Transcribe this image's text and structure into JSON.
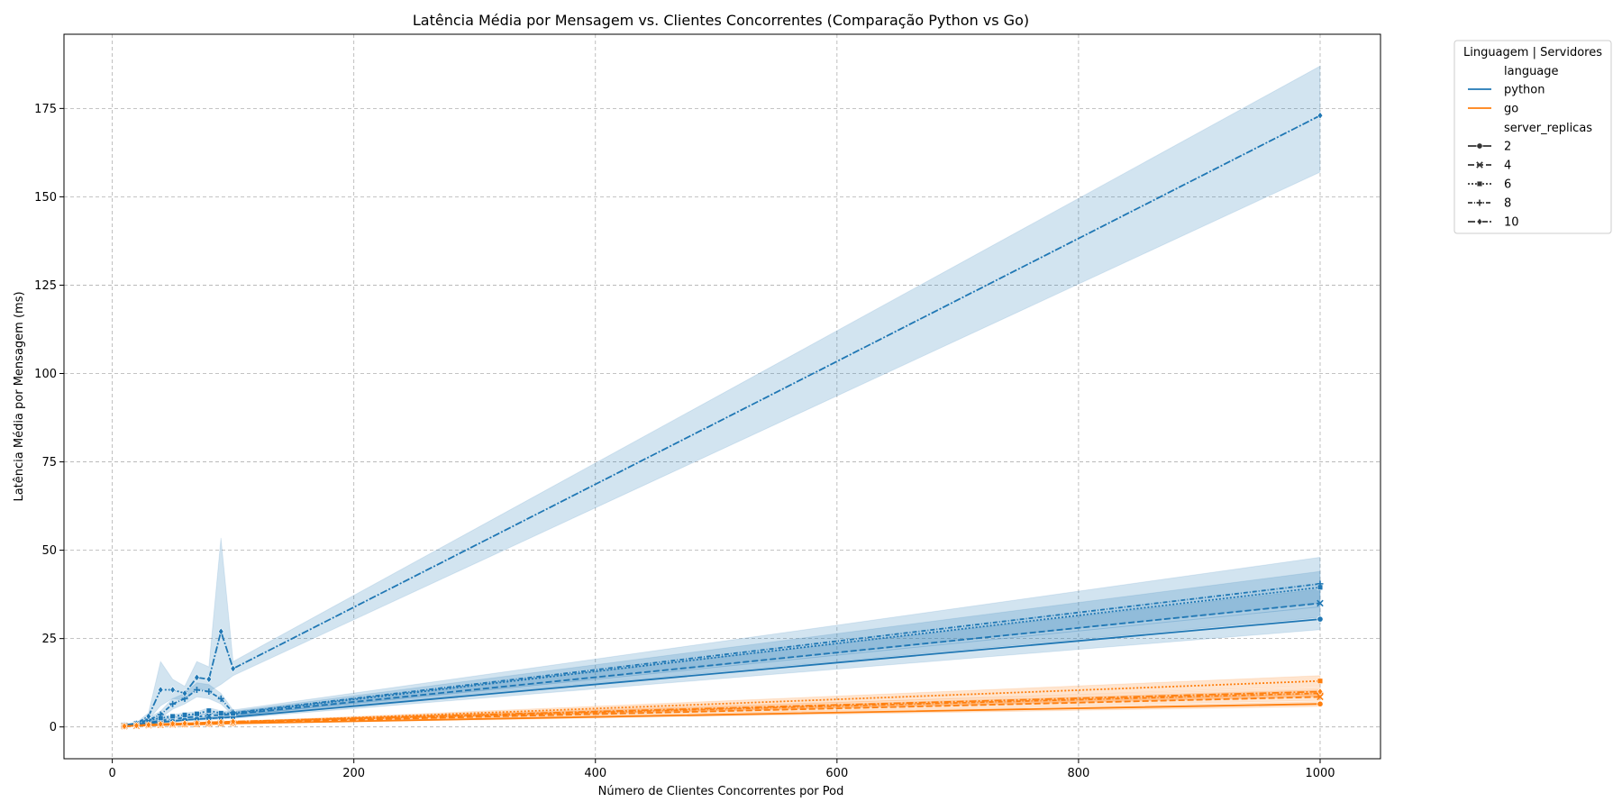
{
  "chart_data": {
    "type": "line",
    "title": "Latência Média por Mensagem vs. Clientes Concorrentes (Comparação Python vs Go)",
    "xlabel": "Número de Clientes Concorrentes por Pod",
    "ylabel": "Latência Média por Mensagem (ms)",
    "xlim": [
      -40,
      1050
    ],
    "ylim": [
      -9,
      196
    ],
    "xticks": [
      0,
      200,
      400,
      600,
      800,
      1000
    ],
    "yticks": [
      0,
      25,
      50,
      75,
      100,
      125,
      150,
      175
    ],
    "grid": true,
    "legend": {
      "placement": "outside-right",
      "title": "Linguagem | Servidores",
      "hue_title": "language",
      "hue_entries": [
        "python",
        "go"
      ],
      "style_title": "server_replicas",
      "style_entries": [
        "2",
        "4",
        "6",
        "8",
        "10"
      ]
    },
    "colors": {
      "python": "#1f77b4",
      "go": "#ff7f0e",
      "grid": "#b0b0b0"
    },
    "series": [
      {
        "language": "python",
        "replicas": "2",
        "x": [
          10,
          20,
          30,
          40,
          50,
          60,
          70,
          80,
          90,
          100,
          1000
        ],
        "y": [
          0.4,
          0.7,
          1.0,
          1.4,
          1.6,
          2.0,
          2.2,
          2.4,
          2.6,
          2.8,
          30.5
        ],
        "lo": [
          0.3,
          0.5,
          0.8,
          1.1,
          1.3,
          1.6,
          1.8,
          2.0,
          2.2,
          2.4,
          27.5
        ],
        "hi": [
          0.5,
          0.9,
          1.3,
          1.7,
          2.0,
          2.4,
          2.7,
          2.9,
          3.1,
          3.3,
          34.0
        ]
      },
      {
        "language": "python",
        "replicas": "4",
        "x": [
          10,
          20,
          30,
          40,
          50,
          60,
          70,
          80,
          90,
          100,
          1000
        ],
        "y": [
          0.4,
          0.8,
          1.2,
          1.8,
          2.2,
          2.6,
          2.9,
          3.2,
          3.4,
          3.6,
          35.0
        ],
        "lo": [
          0.3,
          0.6,
          0.9,
          1.4,
          1.8,
          2.1,
          2.4,
          2.7,
          2.9,
          3.1,
          31.0
        ],
        "hi": [
          0.5,
          1.0,
          1.5,
          2.2,
          2.7,
          3.1,
          3.5,
          3.8,
          4.0,
          4.2,
          39.0
        ]
      },
      {
        "language": "python",
        "replicas": "6",
        "x": [
          10,
          20,
          30,
          40,
          50,
          60,
          70,
          80,
          90,
          100,
          1000
        ],
        "y": [
          0.5,
          1.0,
          1.8,
          2.5,
          3.0,
          3.4,
          3.7,
          4.6,
          3.9,
          3.8,
          39.5
        ],
        "lo": [
          0.4,
          0.8,
          1.4,
          2.0,
          2.5,
          2.9,
          3.1,
          3.8,
          3.2,
          3.2,
          35.0
        ],
        "hi": [
          0.6,
          1.2,
          2.2,
          3.0,
          3.5,
          4.0,
          4.3,
          5.4,
          4.6,
          4.4,
          44.0
        ]
      },
      {
        "language": "python",
        "replicas": "8",
        "x": [
          10,
          20,
          30,
          40,
          50,
          60,
          70,
          80,
          90,
          100,
          1000
        ],
        "y": [
          0.5,
          1.0,
          2.0,
          3.5,
          6.5,
          8.0,
          10.5,
          10.0,
          8.0,
          4.0,
          40.5
        ],
        "lo": [
          0.4,
          0.8,
          1.5,
          2.5,
          5.0,
          6.5,
          8.5,
          8.0,
          6.5,
          3.2,
          34.0
        ],
        "hi": [
          0.6,
          1.2,
          2.5,
          4.5,
          8.0,
          9.5,
          12.5,
          12.0,
          9.5,
          4.8,
          48.0
        ]
      },
      {
        "language": "python",
        "replicas": "10",
        "x": [
          10,
          20,
          30,
          40,
          50,
          60,
          70,
          80,
          90,
          100,
          1000
        ],
        "y": [
          0.5,
          1.0,
          3.0,
          10.5,
          10.5,
          9.5,
          14.0,
          13.5,
          27.0,
          16.5,
          173.0
        ],
        "lo": [
          0.4,
          0.8,
          2.0,
          6.0,
          8.0,
          7.5,
          11.0,
          10.0,
          12.0,
          14.5,
          157.0
        ],
        "hi": [
          0.6,
          1.2,
          4.0,
          18.5,
          13.5,
          11.5,
          18.5,
          17.0,
          53.5,
          18.5,
          187.0
        ]
      },
      {
        "language": "go",
        "replicas": "2",
        "x": [
          10,
          20,
          30,
          40,
          50,
          60,
          70,
          80,
          90,
          100,
          1000
        ],
        "y": [
          0.2,
          0.3,
          0.4,
          0.5,
          0.6,
          0.6,
          0.7,
          0.8,
          0.9,
          1.0,
          6.5
        ],
        "lo": [
          0.1,
          0.2,
          0.3,
          0.4,
          0.5,
          0.5,
          0.6,
          0.7,
          0.8,
          0.9,
          5.8
        ],
        "hi": [
          0.3,
          0.4,
          0.5,
          0.6,
          0.7,
          0.7,
          0.8,
          0.9,
          1.0,
          1.1,
          7.2
        ]
      },
      {
        "language": "go",
        "replicas": "4",
        "x": [
          10,
          20,
          30,
          40,
          50,
          60,
          70,
          80,
          90,
          100,
          1000
        ],
        "y": [
          0.2,
          0.3,
          0.5,
          0.6,
          0.7,
          0.8,
          0.9,
          1.0,
          1.1,
          1.2,
          8.5
        ],
        "lo": [
          0.1,
          0.2,
          0.4,
          0.5,
          0.6,
          0.7,
          0.8,
          0.9,
          1.0,
          1.0,
          7.5
        ],
        "hi": [
          0.3,
          0.4,
          0.6,
          0.7,
          0.8,
          0.9,
          1.0,
          1.1,
          1.2,
          1.4,
          9.5
        ]
      },
      {
        "language": "go",
        "replicas": "6",
        "x": [
          10,
          20,
          30,
          40,
          50,
          60,
          70,
          80,
          90,
          100,
          1000
        ],
        "y": [
          0.2,
          0.4,
          0.5,
          0.7,
          0.8,
          0.9,
          1.0,
          1.1,
          1.2,
          1.3,
          13.0
        ],
        "lo": [
          0.1,
          0.3,
          0.4,
          0.6,
          0.7,
          0.8,
          0.9,
          1.0,
          1.0,
          1.1,
          11.5
        ],
        "hi": [
          0.3,
          0.5,
          0.6,
          0.8,
          0.9,
          1.0,
          1.1,
          1.2,
          1.4,
          1.5,
          14.5
        ]
      },
      {
        "language": "go",
        "replicas": "8",
        "x": [
          10,
          20,
          30,
          40,
          50,
          60,
          70,
          80,
          90,
          100,
          1000
        ],
        "y": [
          0.2,
          0.4,
          0.6,
          0.7,
          0.8,
          0.9,
          1.0,
          1.2,
          1.3,
          1.4,
          9.5
        ],
        "lo": [
          0.1,
          0.3,
          0.5,
          0.6,
          0.7,
          0.8,
          0.9,
          1.0,
          1.1,
          1.2,
          8.5
        ],
        "hi": [
          0.3,
          0.5,
          0.7,
          0.8,
          0.9,
          1.0,
          1.1,
          1.4,
          1.5,
          1.6,
          10.5
        ]
      },
      {
        "language": "go",
        "replicas": "10",
        "x": [
          10,
          20,
          30,
          40,
          50,
          60,
          70,
          80,
          90,
          100,
          1000
        ],
        "y": [
          0.2,
          0.4,
          0.6,
          0.8,
          0.9,
          1.0,
          1.1,
          1.3,
          1.4,
          1.5,
          10.0
        ],
        "lo": [
          0.1,
          0.3,
          0.5,
          0.6,
          0.7,
          0.8,
          0.9,
          1.1,
          1.2,
          1.3,
          8.8
        ],
        "hi": [
          0.3,
          0.5,
          0.7,
          1.0,
          1.1,
          1.2,
          1.3,
          1.5,
          1.6,
          1.7,
          11.2
        ]
      }
    ]
  }
}
